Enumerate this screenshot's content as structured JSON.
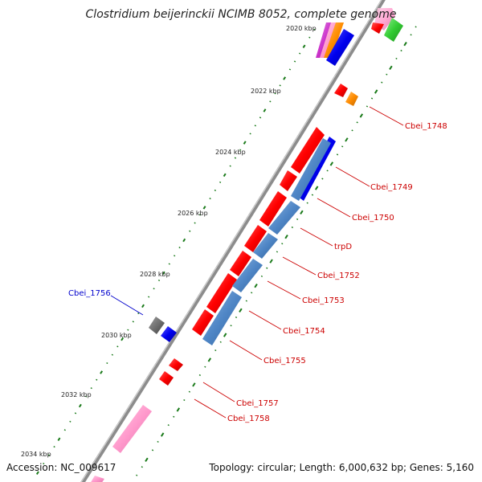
{
  "title": "Clostridium beijerinckii NCIMB 8052, complete genome",
  "accession": "Accession: NC_009617",
  "summary": "Topology: circular; Length: 6,000,632 bp; Genes: 5,160",
  "ticks": [
    {
      "kbp": 2020,
      "label": "2020 kbp"
    },
    {
      "kbp": 2022,
      "label": "2022 kbp"
    },
    {
      "kbp": 2024,
      "label": "2024 kbp"
    },
    {
      "kbp": 2026,
      "label": "2026 kbp"
    },
    {
      "kbp": 2028,
      "label": "2028 kbp"
    },
    {
      "kbp": 2030,
      "label": "2030 kbp"
    },
    {
      "kbp": 2032,
      "label": "2032 kbp"
    },
    {
      "kbp": 2034,
      "label": "2034 kbp"
    }
  ],
  "gene_labels": [
    {
      "name": "Cbei_1748",
      "color": "#cc0000"
    },
    {
      "name": "Cbei_1749",
      "color": "#cc0000"
    },
    {
      "name": "Cbei_1750",
      "color": "#cc0000"
    },
    {
      "name": "trpD",
      "color": "#cc0000"
    },
    {
      "name": "Cbei_1752",
      "color": "#cc0000"
    },
    {
      "name": "Cbei_1753",
      "color": "#cc0000"
    },
    {
      "name": "Cbei_1754",
      "color": "#cc0000"
    },
    {
      "name": "Cbei_1755",
      "color": "#cc0000"
    },
    {
      "name": "Cbei_1756",
      "color": "#0000cc"
    },
    {
      "name": "Cbei_1757",
      "color": "#cc0000"
    },
    {
      "name": "Cbei_1758",
      "color": "#cc0000"
    }
  ],
  "colors": {
    "backbone": "#8c8c8c",
    "cds_forward": "#ff0000",
    "cds_reverse_dark": "#0000ee",
    "steelblue": "#4f86c6",
    "gray_feature": "#707070",
    "orange": "#ff8c00",
    "green": "#33cc33",
    "pink": "#ff99cc",
    "tick_mark": "#1a7a1a"
  }
}
